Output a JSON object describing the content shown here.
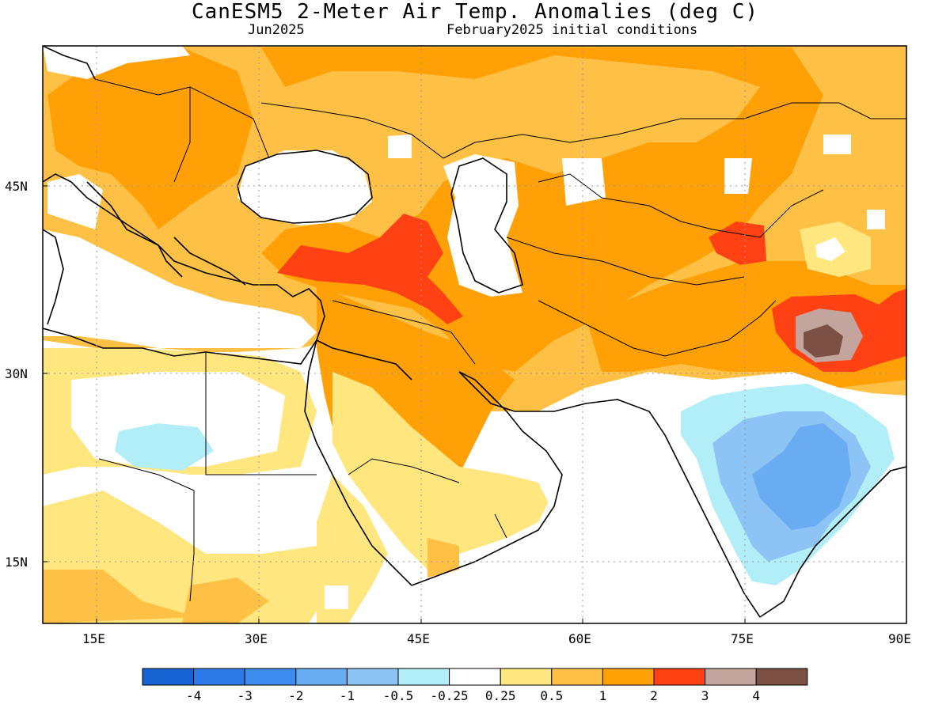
{
  "title": "CanESM5 2-Meter Air Temp. Anomalies (deg C)",
  "subtitle_left": "Jun2025",
  "subtitle_right": "February2025 initial conditions",
  "lat_labels": [
    "45N",
    "30N",
    "15N"
  ],
  "lon_labels": [
    "15E",
    "30E",
    "45E",
    "60E",
    "75E",
    "90E"
  ],
  "colorbar": {
    "colors": [
      "#1763d4",
      "#2b7ae8",
      "#3d8cf0",
      "#6aacf2",
      "#8dc4f6",
      "#b2eef8",
      "#ffffff",
      "#ffe67f",
      "#ffc145",
      "#ffa006",
      "#ff4114",
      "#c4a59d",
      "#7b5045"
    ],
    "tick_labels": [
      "-4",
      "-3",
      "-2",
      "-1",
      "-0.5",
      "-0.25",
      "0.25",
      "0.5",
      "1",
      "2",
      "3",
      "4"
    ]
  },
  "colors": {
    "coast": "#000000",
    "grid": "#999999"
  }
}
